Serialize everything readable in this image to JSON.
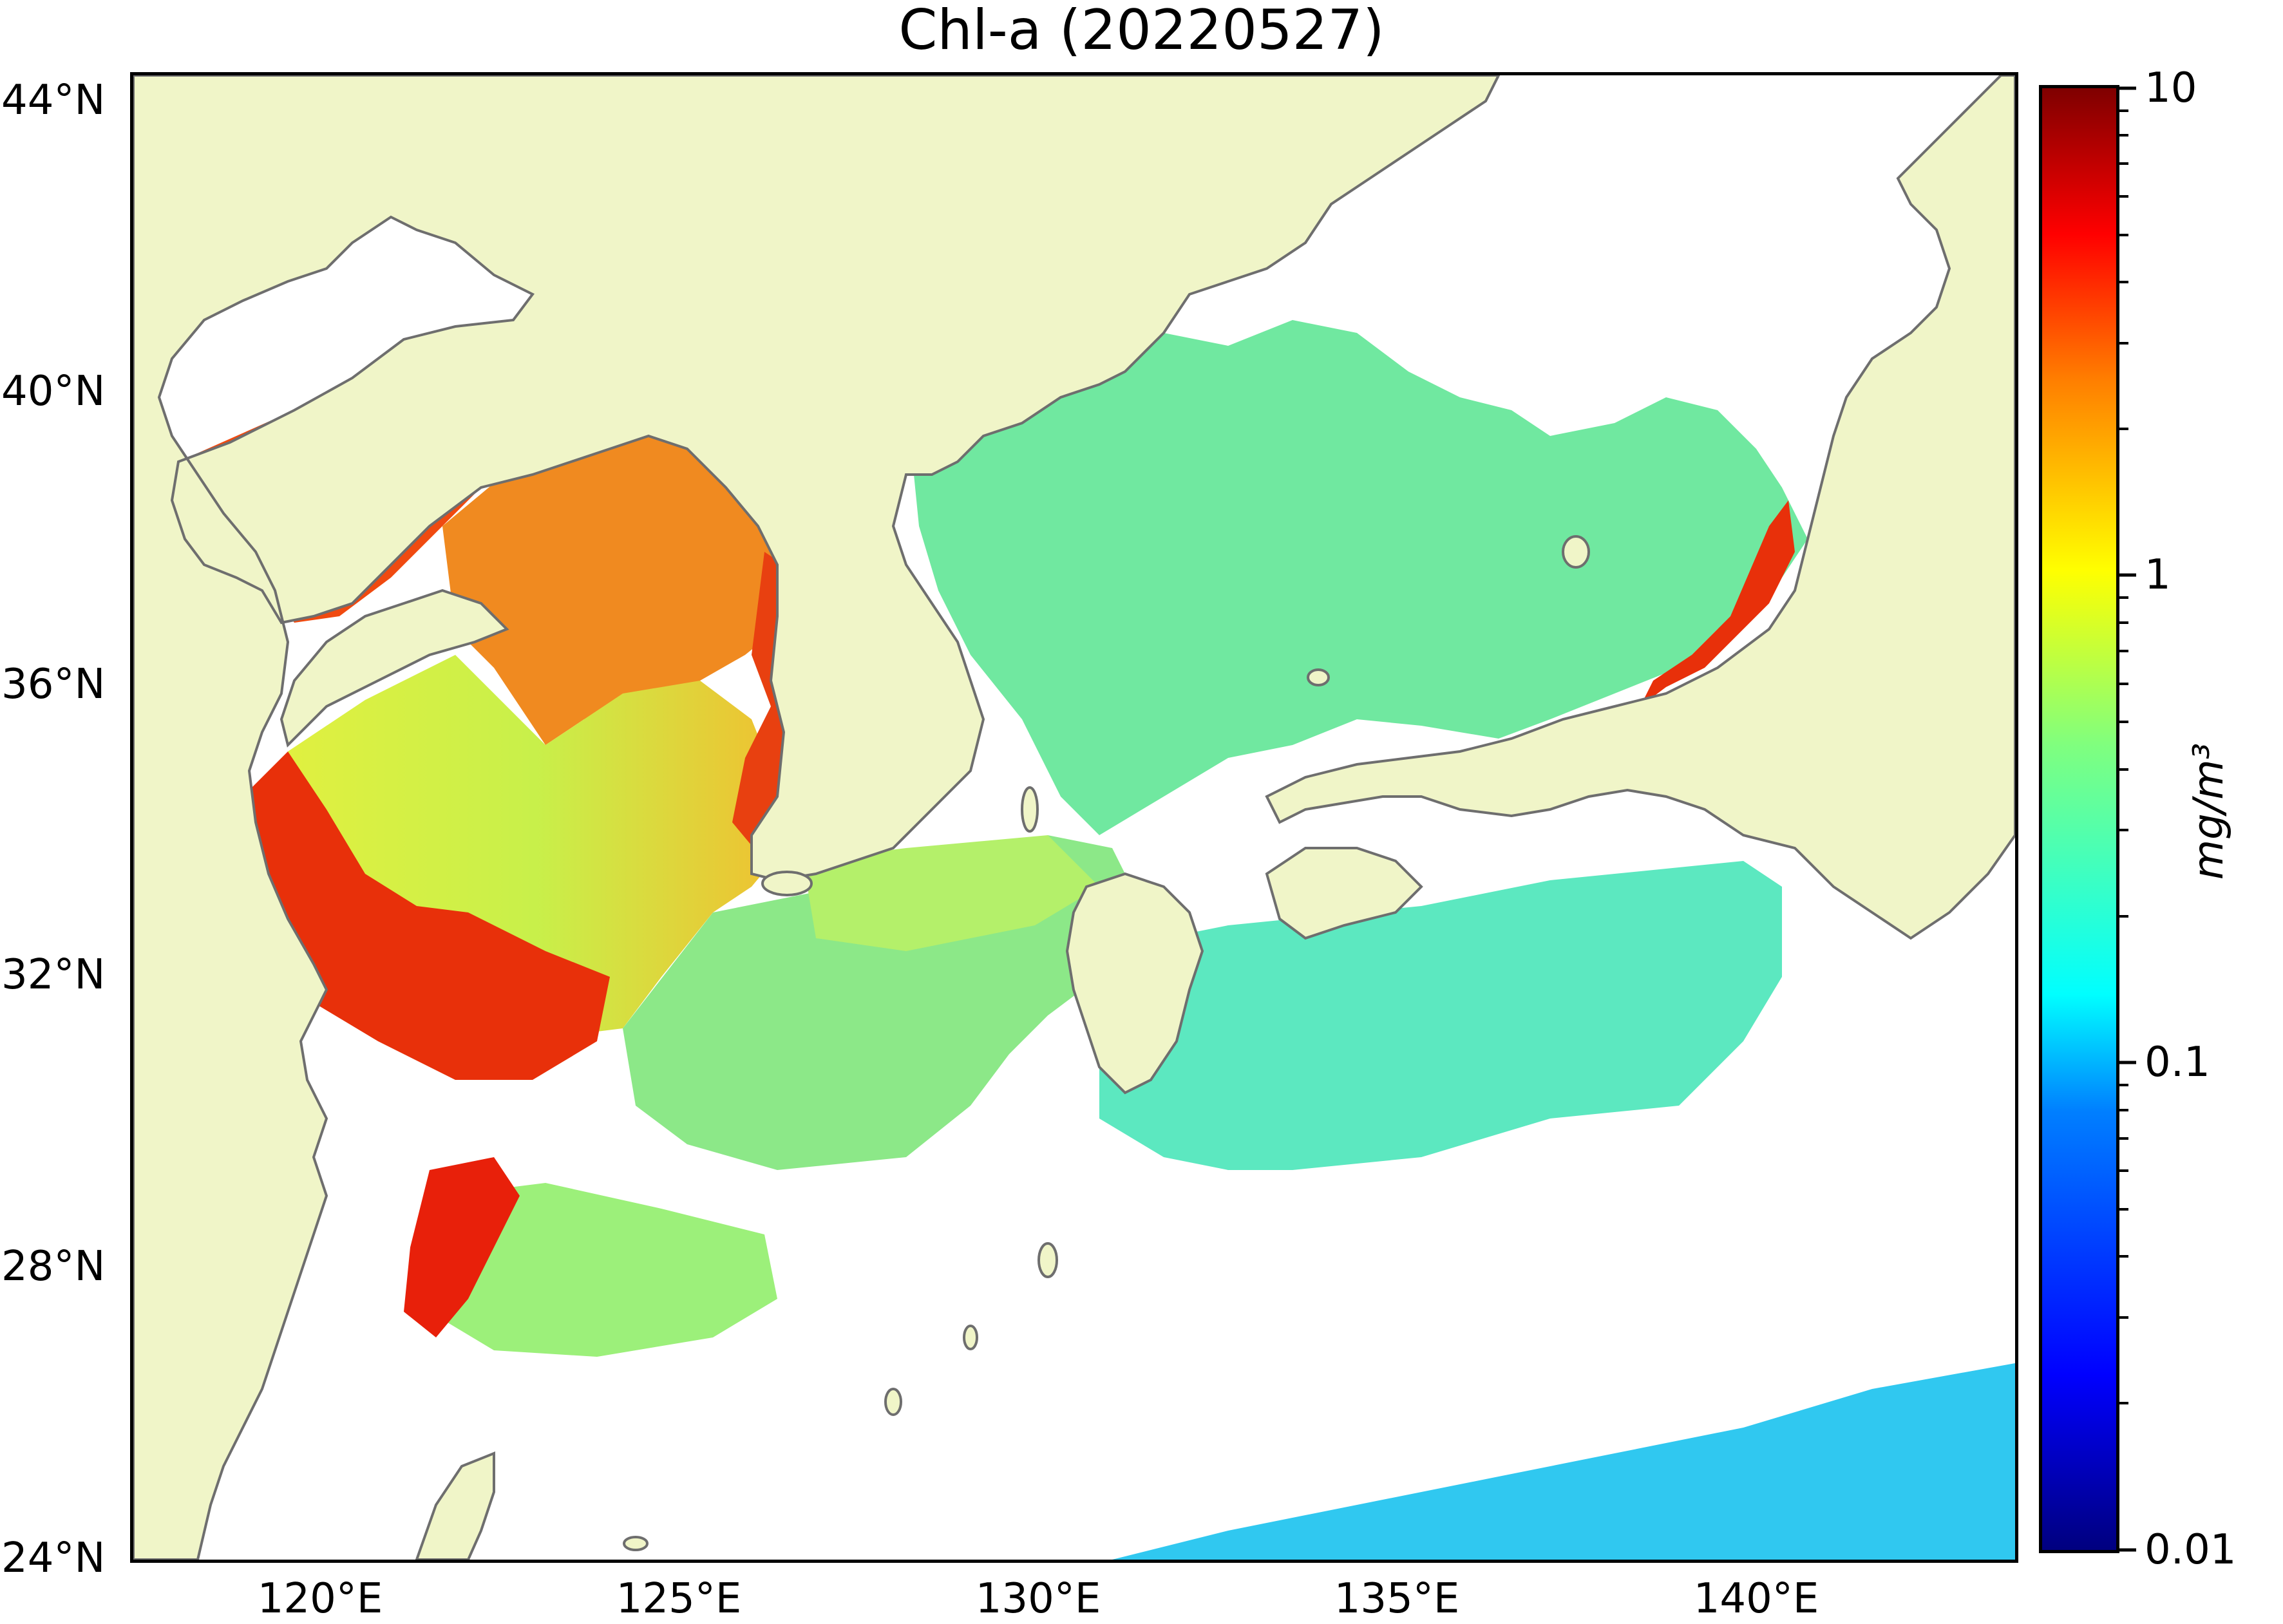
{
  "title": "Chl-a (20220527)",
  "map": {
    "extent": {
      "lon_min": 116.7,
      "lon_max": 143.0,
      "lat_min": 24.0,
      "lat_max": 44.4
    },
    "colors": {
      "land": "#f0f5c8",
      "coast": "#6e6e6e",
      "no_data": "#ffffff"
    },
    "x_ticks": [
      {
        "lon": 120,
        "label": "120°E"
      },
      {
        "lon": 125,
        "label": "125°E"
      },
      {
        "lon": 130,
        "label": "130°E"
      },
      {
        "lon": 135,
        "label": "135°E"
      },
      {
        "lon": 140,
        "label": "140°E"
      }
    ],
    "y_ticks": [
      {
        "lat": 44,
        "label": "44°N"
      },
      {
        "lat": 40,
        "label": "40°N"
      },
      {
        "lat": 36,
        "label": "36°N"
      },
      {
        "lat": 32,
        "label": "32°N"
      },
      {
        "lat": 28,
        "label": "28°N"
      },
      {
        "lat": 24,
        "label": "24°N"
      }
    ]
  },
  "colorbar": {
    "scale": "log",
    "range": [
      0.01,
      10
    ],
    "colormap": "jet",
    "ticks": [
      {
        "value": 10,
        "label": "10"
      },
      {
        "value": 1,
        "label": "1"
      },
      {
        "value": 0.1,
        "label": "0.1"
      },
      {
        "value": 0.01,
        "label": "0.01"
      }
    ],
    "units": "mg/m³"
  }
}
